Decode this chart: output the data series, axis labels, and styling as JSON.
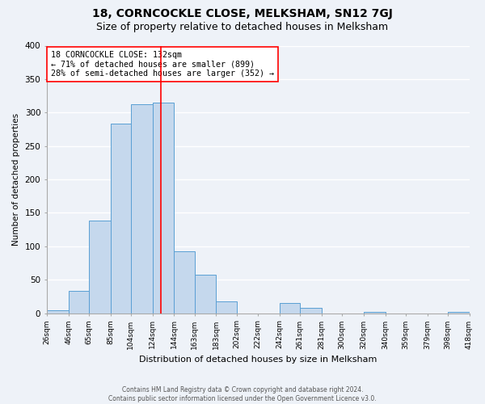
{
  "title": "18, CORNCOCKLE CLOSE, MELKSHAM, SN12 7GJ",
  "subtitle": "Size of property relative to detached houses in Melksham",
  "xlabel": "Distribution of detached houses by size in Melksham",
  "ylabel": "Number of detached properties",
  "bin_edges": [
    26,
    46,
    65,
    85,
    104,
    124,
    144,
    163,
    183,
    202,
    222,
    242,
    261,
    281,
    300,
    320,
    340,
    359,
    379,
    398,
    418
  ],
  "bin_labels": [
    "26sqm",
    "46sqm",
    "65sqm",
    "85sqm",
    "104sqm",
    "124sqm",
    "144sqm",
    "163sqm",
    "183sqm",
    "202sqm",
    "222sqm",
    "242sqm",
    "261sqm",
    "281sqm",
    "300sqm",
    "320sqm",
    "340sqm",
    "359sqm",
    "379sqm",
    "398sqm",
    "418sqm"
  ],
  "bar_heights": [
    5,
    33,
    138,
    284,
    312,
    315,
    93,
    57,
    18,
    0,
    0,
    15,
    8,
    0,
    0,
    2,
    0,
    0,
    0,
    2
  ],
  "bar_color": "#c5d8ed",
  "bar_edge_color": "#5a9fd4",
  "vline_x": 132,
  "vline_color": "red",
  "annotation_line1": "18 CORNCOCKLE CLOSE: 132sqm",
  "annotation_line2": "← 71% of detached houses are smaller (899)",
  "annotation_line3": "28% of semi-detached houses are larger (352) →",
  "annotation_box_color": "white",
  "annotation_border_color": "red",
  "ylim": [
    0,
    400
  ],
  "yticks": [
    0,
    50,
    100,
    150,
    200,
    250,
    300,
    350,
    400
  ],
  "footer1": "Contains HM Land Registry data © Crown copyright and database right 2024.",
  "footer2": "Contains public sector information licensed under the Open Government Licence v3.0.",
  "bg_color": "#eef2f8",
  "plot_bg_color": "#eef2f8",
  "grid_color": "white",
  "title_fontsize": 10,
  "subtitle_fontsize": 9
}
